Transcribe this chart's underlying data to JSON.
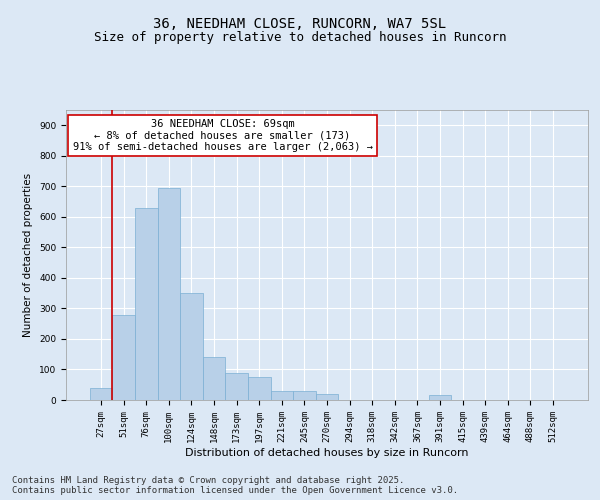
{
  "title_line1": "36, NEEDHAM CLOSE, RUNCORN, WA7 5SL",
  "title_line2": "Size of property relative to detached houses in Runcorn",
  "xlabel": "Distribution of detached houses by size in Runcorn",
  "ylabel": "Number of detached properties",
  "bar_color": "#b8d0e8",
  "bar_edge_color": "#7aafd4",
  "vline_color": "#cc0000",
  "vline_x_index": 1,
  "categories": [
    "27sqm",
    "51sqm",
    "76sqm",
    "100sqm",
    "124sqm",
    "148sqm",
    "173sqm",
    "197sqm",
    "221sqm",
    "245sqm",
    "270sqm",
    "294sqm",
    "318sqm",
    "342sqm",
    "367sqm",
    "391sqm",
    "415sqm",
    "439sqm",
    "464sqm",
    "488sqm",
    "512sqm"
  ],
  "values": [
    40,
    280,
    630,
    695,
    350,
    140,
    90,
    75,
    30,
    30,
    20,
    0,
    0,
    0,
    0,
    15,
    0,
    0,
    0,
    0,
    0
  ],
  "ylim": [
    0,
    950
  ],
  "yticks": [
    0,
    100,
    200,
    300,
    400,
    500,
    600,
    700,
    800,
    900
  ],
  "annotation_text": "36 NEEDHAM CLOSE: 69sqm\n← 8% of detached houses are smaller (173)\n91% of semi-detached houses are larger (2,063) →",
  "annotation_box_color": "#ffffff",
  "annotation_border_color": "#cc0000",
  "background_color": "#dce8f5",
  "plot_bg_color": "#dce8f5",
  "footer_text": "Contains HM Land Registry data © Crown copyright and database right 2025.\nContains public sector information licensed under the Open Government Licence v3.0.",
  "title_fontsize": 10,
  "subtitle_fontsize": 9,
  "annotation_fontsize": 7.5,
  "footer_fontsize": 6.5,
  "xlabel_fontsize": 8,
  "ylabel_fontsize": 7.5,
  "tick_fontsize": 6.5
}
